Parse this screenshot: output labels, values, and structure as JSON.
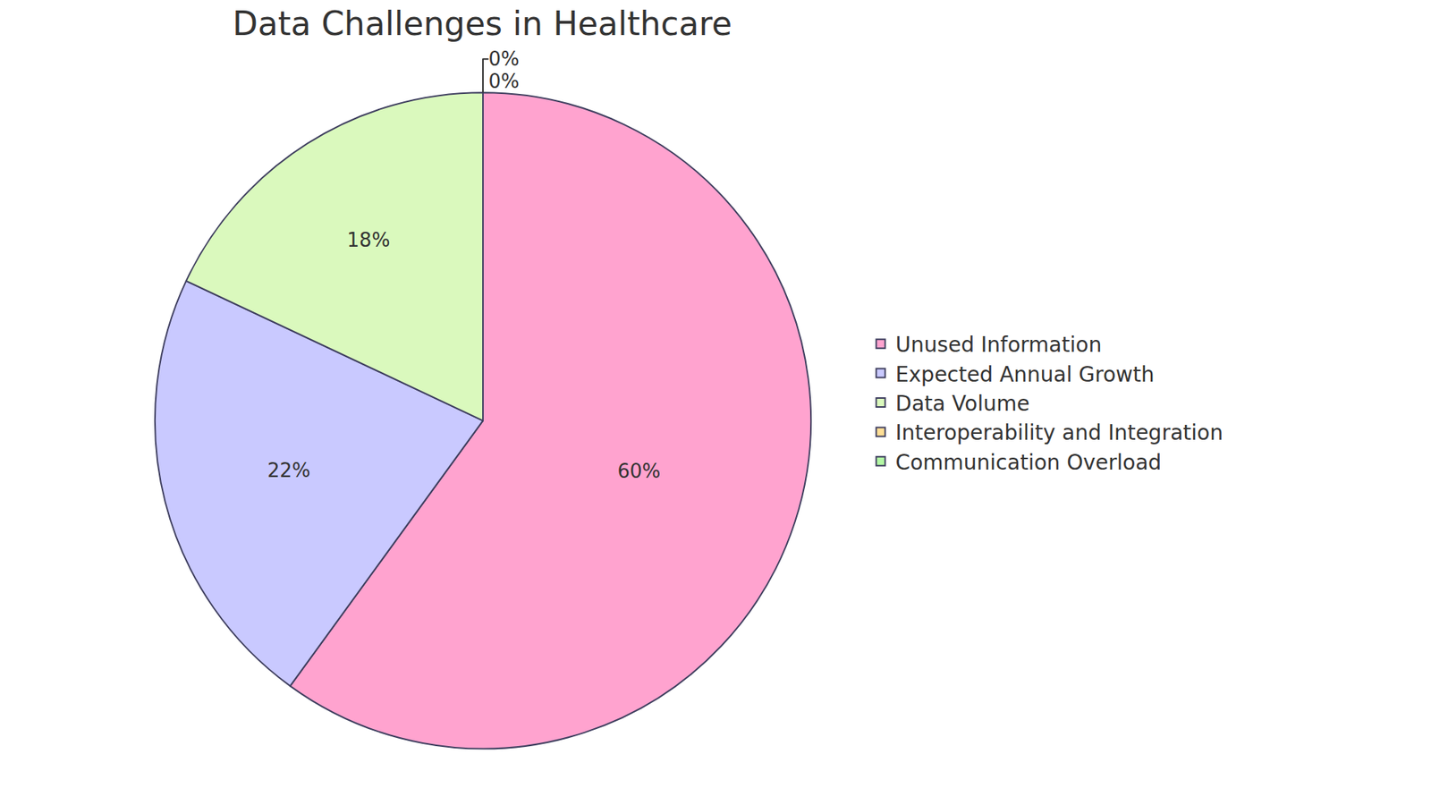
{
  "chart_data": {
    "type": "pie",
    "title": "Data Challenges in Healthcare",
    "categories": [
      "Unused Information",
      "Expected Annual Growth",
      "Data Volume",
      "Interoperability and Integration",
      "Communication Overload"
    ],
    "values": [
      60,
      22,
      18,
      0,
      0
    ],
    "value_labels": [
      "60%",
      "22%",
      "18%",
      "0%",
      "0%"
    ],
    "colors": [
      "#ffa3cf",
      "#c9c9ff",
      "#daf9bd",
      "#ffde95",
      "#b3f7a4"
    ],
    "data_labels": true,
    "legend": "right"
  }
}
